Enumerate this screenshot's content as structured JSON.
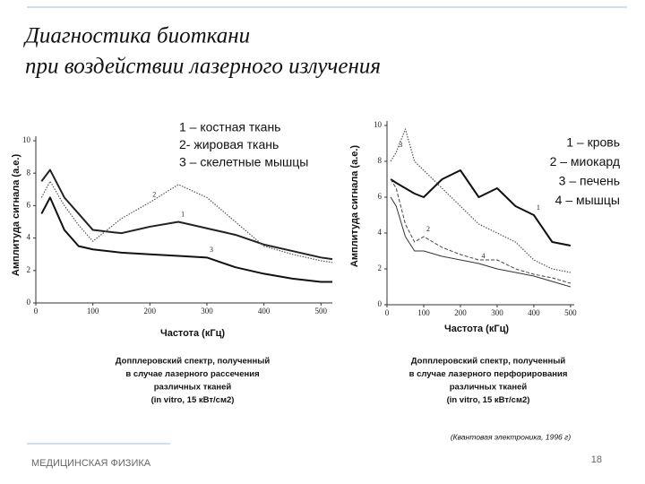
{
  "title": [
    "Диагностика биоткани",
    "при воздействии лазерного излучения"
  ],
  "chart_data": [
    {
      "type": "line",
      "ylabel": "Амплитуда сигнала (а.е.)",
      "xlabel": "Частота (кГц)",
      "xlim": [
        0,
        520
      ],
      "ylim": [
        0,
        10
      ],
      "xticks": [
        0,
        100,
        200,
        300,
        400,
        500
      ],
      "yticks": [
        0,
        2,
        4,
        6,
        8,
        10
      ],
      "x": [
        10,
        25,
        50,
        75,
        100,
        150,
        200,
        250,
        300,
        350,
        400,
        450,
        500,
        520
      ],
      "series": [
        {
          "name": "1 – костная ткань",
          "label": "1",
          "color": "#222",
          "style": "solid",
          "width": 2,
          "values": [
            7.5,
            8.2,
            6.5,
            5.5,
            4.5,
            4.3,
            4.7,
            5.0,
            4.6,
            4.2,
            3.6,
            3.2,
            2.8,
            2.7
          ]
        },
        {
          "name": "2- жировая ткань",
          "label": "2",
          "color": "#555",
          "style": "dotted",
          "width": 1.2,
          "values": [
            6.5,
            7.5,
            6.0,
            4.8,
            3.8,
            5.2,
            6.2,
            7.3,
            6.5,
            5.0,
            3.5,
            3.0,
            2.6,
            2.5
          ]
        },
        {
          "name": "3 – скелетные мышцы",
          "label": "3",
          "color": "#111",
          "style": "solid",
          "width": 2,
          "values": [
            5.5,
            6.5,
            4.5,
            3.5,
            3.3,
            3.1,
            3.0,
            2.9,
            2.8,
            2.2,
            1.8,
            1.5,
            1.3,
            1.3
          ]
        }
      ],
      "caption": [
        "Допплеровский спектр, полученный",
        "в случае лазерного рассечения",
        "различных тканей",
        "(in vitro, 15 кВт/см2)"
      ]
    },
    {
      "type": "line",
      "ylabel": "Амплитуда сигнала (а.е.)",
      "xlabel": "Частота (кГц)",
      "xlim": [
        0,
        510
      ],
      "ylim": [
        0,
        10
      ],
      "xticks": [
        0,
        100,
        200,
        300,
        400,
        500
      ],
      "yticks": [
        0,
        2,
        4,
        6,
        8,
        10
      ],
      "x": [
        10,
        25,
        50,
        75,
        100,
        150,
        200,
        250,
        300,
        350,
        400,
        450,
        500
      ],
      "series": [
        {
          "name": "1 – кровь",
          "label": "1",
          "color": "#111",
          "style": "solid",
          "width": 2,
          "values": [
            7,
            6.8,
            6.5,
            6.2,
            6,
            7,
            7.5,
            6,
            6.5,
            5.5,
            5,
            3.5,
            3.3
          ]
        },
        {
          "name": "2 – миокард",
          "label": "2",
          "color": "#444",
          "style": "dashed",
          "width": 1,
          "values": [
            7,
            6.5,
            4.5,
            3.5,
            3.8,
            3.2,
            2.8,
            2.5,
            2.5,
            2,
            1.7,
            1.5,
            1.2
          ]
        },
        {
          "name": "3 – печень",
          "label": "3",
          "color": "#555",
          "style": "dotted",
          "width": 1.2,
          "values": [
            8,
            8.5,
            9.8,
            8,
            7.5,
            6.5,
            5.5,
            4.5,
            4,
            3.5,
            2.5,
            2,
            1.8
          ]
        },
        {
          "name": "4 – мышцы",
          "label": "4",
          "color": "#333",
          "style": "solid",
          "width": 1,
          "values": [
            6,
            5.5,
            3.8,
            3,
            3,
            2.7,
            2.5,
            2.3,
            2,
            1.8,
            1.6,
            1.3,
            1.0
          ]
        }
      ],
      "caption": [
        "Допплеровский спектр, полученный",
        "в случае лазерного перфорирования",
        "различных тканей",
        "(in vitro, 15 кВт/см2)"
      ]
    }
  ],
  "source": "(Квантовая электроника, 1996 г)",
  "footer": "МЕДИЦИНСКАЯ ФИЗИКА",
  "page": "18"
}
